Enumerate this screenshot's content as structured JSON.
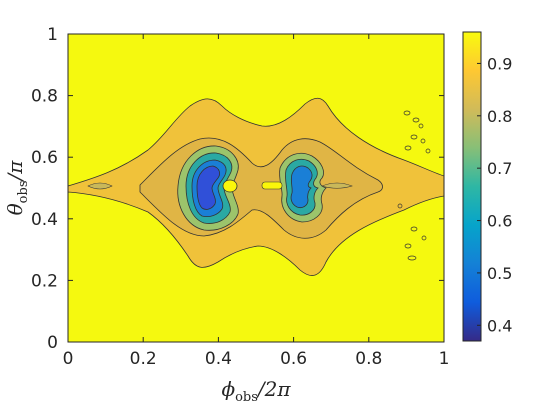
{
  "chart_data": {
    "type": "heatmap",
    "subtype": "filled-contour",
    "xlabel": {
      "main": "ϕ",
      "sub": "obs",
      "tail": "/2π"
    },
    "ylabel": {
      "main": "θ",
      "sub": "obs",
      "tail": "/π"
    },
    "xlim": [
      0,
      1
    ],
    "ylim": [
      0,
      1
    ],
    "xticks": [
      0,
      0.2,
      0.4,
      0.6,
      0.8,
      1
    ],
    "xtick_labels": [
      "0",
      "0.2",
      "0.4",
      "0.6",
      "0.8",
      "1"
    ],
    "yticks": [
      0,
      0.2,
      0.4,
      0.6,
      0.8,
      1
    ],
    "ytick_labels": [
      "0",
      "0.2",
      "0.4",
      "0.6",
      "0.8",
      "1"
    ],
    "colorbar": {
      "colormap": "parula",
      "range": [
        0.37,
        0.96
      ],
      "ticks": [
        0.4,
        0.5,
        0.6,
        0.7,
        0.8,
        0.9
      ],
      "tick_labels": [
        "0.4",
        "0.5",
        "0.6",
        "0.7",
        "0.8",
        "0.9"
      ],
      "position": "right"
    },
    "background_value": 0.95,
    "contour_regions": [
      {
        "level": 0.88,
        "shape": "horizontal band with lobes",
        "x_range": [
          0,
          1
        ],
        "y_range": [
          0.28,
          0.83
        ]
      },
      {
        "level": 0.8,
        "shape": "twin lobes",
        "x_range": [
          0.2,
          0.85
        ],
        "y_range": [
          0.37,
          0.65
        ]
      },
      {
        "level": 0.7,
        "shape": "lobe",
        "center": [
          0.39,
          0.5
        ]
      },
      {
        "level": 0.55,
        "shape": "lobe",
        "center": [
          0.39,
          0.5
        ]
      },
      {
        "level": 0.42,
        "shape": "minimum",
        "center": [
          0.385,
          0.5
        ]
      },
      {
        "level": 0.65,
        "shape": "lobe",
        "center": [
          0.6,
          0.5
        ]
      },
      {
        "level": 0.45,
        "shape": "minimum",
        "center": [
          0.585,
          0.5
        ]
      },
      {
        "level": 0.95,
        "shape": "peak",
        "center": [
          0.43,
          0.5
        ]
      }
    ],
    "grid": false,
    "legend": "none"
  }
}
